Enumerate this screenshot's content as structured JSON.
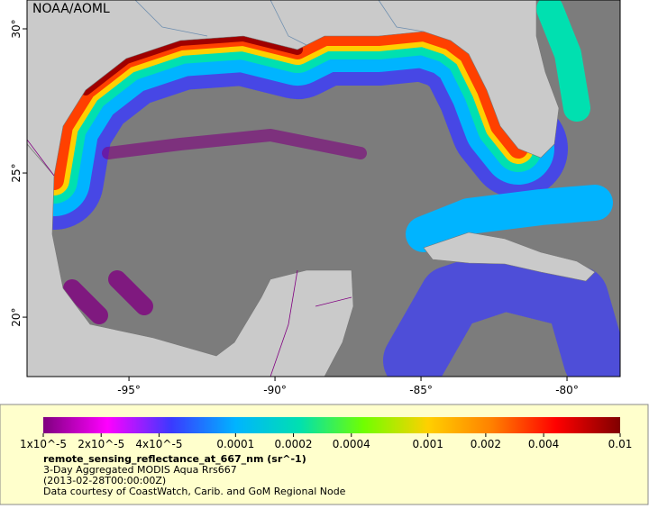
{
  "map": {
    "label": "NOAA/AOML",
    "lonlim": [
      -98.49,
      -78.18
    ],
    "latlim": [
      17.94,
      31.0
    ],
    "lon_ticks": [
      {
        "value": -95,
        "label": "-95°"
      },
      {
        "value": -90,
        "label": "-90°"
      },
      {
        "value": -85,
        "label": "-85°"
      },
      {
        "value": -80,
        "label": "-80°"
      }
    ],
    "lat_ticks": [
      {
        "value": 30,
        "label": "30°"
      },
      {
        "value": 25,
        "label": "25°"
      },
      {
        "value": 20,
        "label": "20°"
      }
    ]
  },
  "colorbar": {
    "log": true,
    "lim": [
      1e-05,
      0.01
    ],
    "colors": [
      "#7f007f",
      "#ff00ff",
      "#3a3aff",
      "#00b4ff",
      "#00e0b0",
      "#70ff00",
      "#ffd000",
      "#ff8000",
      "#ff0000",
      "#800000"
    ],
    "ticks": [
      {
        "value": 1e-05,
        "label": "1x10^-5"
      },
      {
        "value": 2e-05,
        "label": "2x10^-5"
      },
      {
        "value": 4e-05,
        "label": "4x10^-5"
      },
      0.0001,
      0.0002,
      0.0004,
      0.001,
      0.002,
      0.004,
      0.01
    ]
  },
  "caption": {
    "variable": "remote_sensing_reflectance_at_667_nm (sr^-1)",
    "product": "3-Day Aggregated MODIS Aqua Rrs667",
    "date": "(2013-02-28T00:00:00Z)",
    "credit": "Data courtesy of CoastWatch, Carib. and GoM Regional Node"
  }
}
